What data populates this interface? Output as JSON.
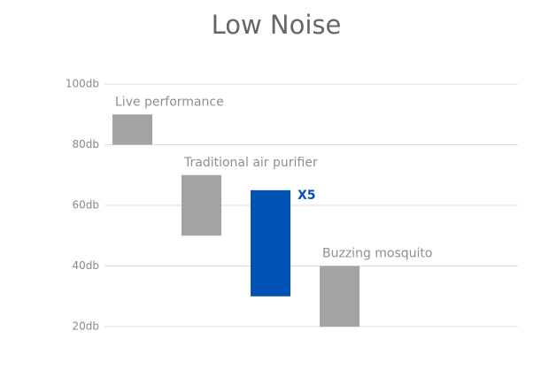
{
  "chart_data": {
    "type": "floating-bar",
    "title": "Low Noise",
    "categories": [
      "Live performance",
      "Traditional air purifier",
      "X5",
      "Buzzing mosquito"
    ],
    "low": [
      80,
      50,
      30,
      20
    ],
    "high": [
      90,
      70,
      65,
      40
    ],
    "colors": [
      "#a3a3a3",
      "#a3a3a3",
      "#0052b4",
      "#a3a3a3"
    ],
    "label_colors": [
      "#8f8f8f",
      "#8f8f8f",
      "#0052b4",
      "#8f8f8f"
    ],
    "ylim": [
      20,
      100
    ],
    "yticks": [
      {
        "value": 20,
        "label": "20db"
      },
      {
        "value": 40,
        "label": "40db"
      },
      {
        "value": 60,
        "label": "60db"
      },
      {
        "value": 80,
        "label": "80db"
      },
      {
        "value": 100,
        "label": "100db"
      }
    ],
    "grid": true
  }
}
